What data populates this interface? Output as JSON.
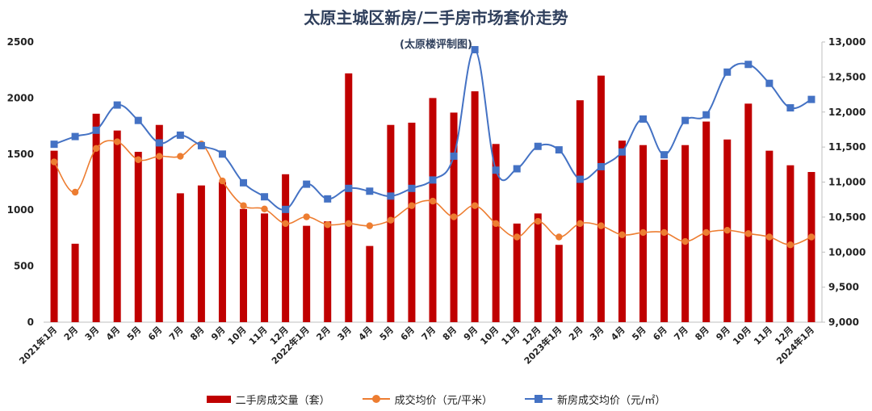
{
  "title": "太原主城区新房/二手房市场套价走势",
  "subtitle": "(太原楼评制图)",
  "colors": {
    "bars": "#c00000",
    "avg_price_line": "#ed7d31",
    "new_price_line": "#4472c4",
    "new_price_marker": "#4472c4",
    "text": "#2f3f5c"
  },
  "legend": [
    {
      "label": "二手房成交量（套）"
    },
    {
      "label": "成交均价（元/平米）"
    },
    {
      "label": "新房成交均价（元/㎡）"
    }
  ],
  "chart_data": {
    "type": "bar+line",
    "categories": [
      "2021年1月",
      "2月",
      "3月",
      "4月",
      "5月",
      "6月",
      "7月",
      "8月",
      "9月",
      "10月",
      "11月",
      "12月",
      "2022年1月",
      "2月",
      "3月",
      "4月",
      "5月",
      "6月",
      "7月",
      "8月",
      "9月",
      "10月",
      "11月",
      "12月",
      "2023年1月",
      "2月",
      "3月",
      "4月",
      "5月",
      "6月",
      "7月",
      "8月",
      "9月",
      "10月",
      "11月",
      "12月",
      "2024年1月"
    ],
    "y_left": {
      "min": 0,
      "max": 2500,
      "ticks": [
        "0",
        "500",
        "1000",
        "1500",
        "2000",
        "2500"
      ]
    },
    "y_right": {
      "min": 9000,
      "max": 13000,
      "ticks": [
        "9,000",
        "9,500",
        "10,000",
        "10,500",
        "11,000",
        "11,500",
        "12,000",
        "12,500",
        "13,000"
      ]
    },
    "series": [
      {
        "name": "二手房成交量（套）",
        "type": "bar",
        "axis": "left",
        "values": [
          1530,
          700,
          1860,
          1710,
          1520,
          1760,
          1150,
          1220,
          1250,
          1010,
          970,
          1320,
          860,
          900,
          2220,
          680,
          1760,
          1780,
          2000,
          1870,
          2060,
          1590,
          880,
          970,
          690,
          1980,
          2200,
          1620,
          1580,
          1450,
          1580,
          1790,
          1630,
          1950,
          1530,
          1400,
          1340
        ]
      },
      {
        "name": "成交均价（元/平米）",
        "type": "line",
        "axis": "left",
        "values": [
          1430,
          1160,
          1550,
          1610,
          1450,
          1480,
          1480,
          1590,
          1260,
          1040,
          1010,
          880,
          940,
          870,
          880,
          860,
          910,
          1040,
          1080,
          940,
          1040,
          880,
          760,
          900,
          760,
          880,
          860,
          780,
          800,
          800,
          720,
          800,
          820,
          790,
          760,
          690,
          760
        ]
      },
      {
        "name": "新房成交均价（元/㎡）",
        "type": "line",
        "axis": "right",
        "values": [
          11540,
          11650,
          11740,
          12100,
          11880,
          11560,
          11670,
          11520,
          11400,
          10990,
          10790,
          10610,
          10970,
          10760,
          10910,
          10870,
          10800,
          10910,
          11030,
          11370,
          12890,
          11170,
          11190,
          11510,
          11460,
          11040,
          11220,
          11430,
          11900,
          11390,
          11880,
          11960,
          12570,
          12680,
          12410,
          12060,
          12180
        ]
      }
    ]
  }
}
